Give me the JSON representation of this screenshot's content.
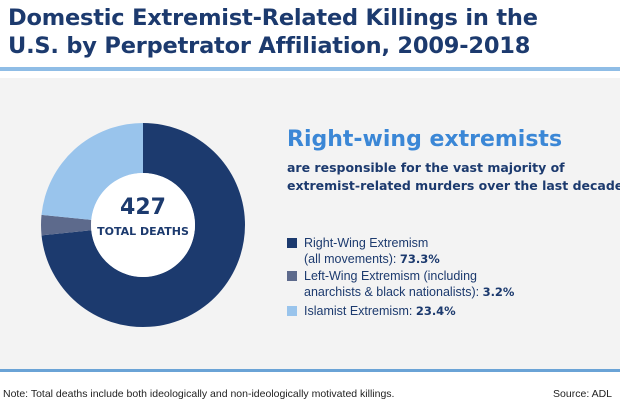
{
  "title_line1": "Domestic Extremist-Related Killings in the",
  "title_line2": "U.S. by Perpetrator Affiliation, 2009-2018",
  "center_number": "427",
  "center_label": "TOTAL DEATHS",
  "headline": "Right-wing extremists",
  "subline1": "are responsible for the vast majority of",
  "subline2": "extremist-related murders over the last decade.",
  "legend": [
    {
      "line1": "Right-Wing Extremism",
      "line2": "(all movements): ",
      "value": "73.3%"
    },
    {
      "line1": "Left-Wing Extremism (including",
      "line2": "anarchists & black nationalists): ",
      "value": "3.2%"
    },
    {
      "line1": "Islamist Extremism: ",
      "line2": "",
      "value": "23.4%"
    }
  ],
  "footnote": "Note: Total deaths include both ideologically and non-ideologically motivated killings.",
  "source": "Source: ADL",
  "colors": {
    "right": "#1c3a6e",
    "left": "#5d6a8c",
    "islamist": "#99c4ec"
  },
  "chart_data": {
    "type": "pie",
    "categories": [
      "Right-Wing Extremism (all movements)",
      "Left-Wing Extremism (including anarchists & black nationalists)",
      "Islamist Extremism"
    ],
    "values": [
      73.3,
      3.2,
      23.4
    ],
    "total": 427
  }
}
